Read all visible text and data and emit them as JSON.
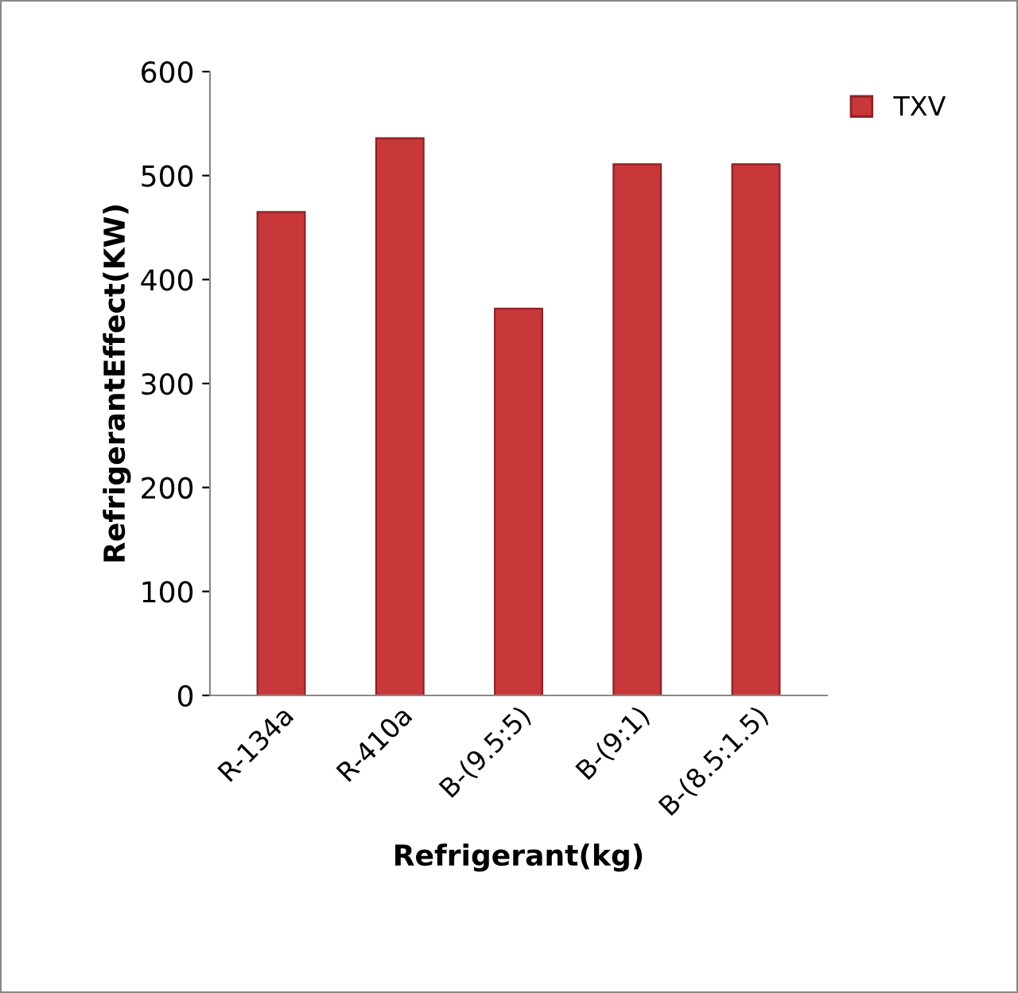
{
  "chart_data": {
    "type": "bar",
    "xlabel": "Refrigerant(kg)",
    "ylabel": "RefrigerantEffect(KW)",
    "categories": [
      "R-134a",
      "R-410a",
      "B-(9.5:5)",
      "B-(9:1)",
      "B-(8.5:1.5)"
    ],
    "series": [
      {
        "name": "TXV",
        "color": "#c8373a",
        "values": [
          465,
          536,
          372,
          511,
          511
        ]
      }
    ],
    "ylim": [
      0,
      600
    ],
    "yticks": [
      0,
      100,
      200,
      300,
      400,
      500,
      600
    ],
    "grid": false,
    "legend": "top right"
  }
}
